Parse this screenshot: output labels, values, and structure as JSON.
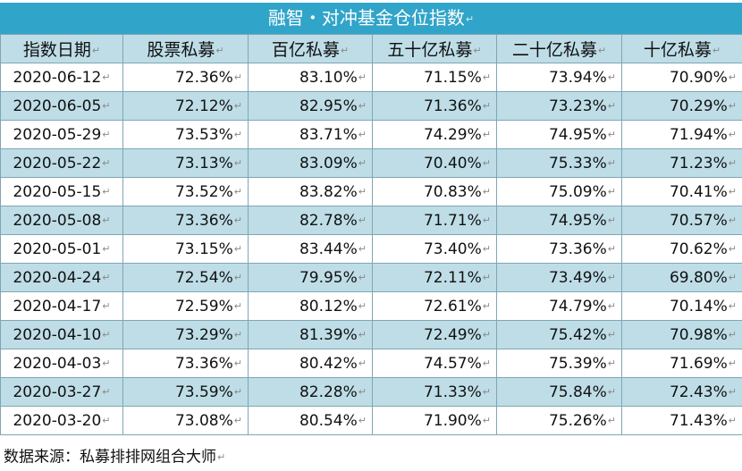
{
  "title": "融智・对冲基金仓位指数",
  "headers": [
    "指数日期",
    "股票私募",
    "百亿私募",
    "五十亿私募",
    "二十亿私募",
    "十亿私募"
  ],
  "rows": [
    [
      "2020-06-12",
      "72.36%",
      "83.10%",
      "71.15%",
      "73.94%",
      "70.90%"
    ],
    [
      "2020-06-05",
      "72.12%",
      "82.95%",
      "71.36%",
      "73.23%",
      "70.29%"
    ],
    [
      "2020-05-29",
      "73.53%",
      "83.71%",
      "74.29%",
      "74.95%",
      "71.94%"
    ],
    [
      "2020-05-22",
      "73.13%",
      "83.09%",
      "70.40%",
      "75.33%",
      "71.23%"
    ],
    [
      "2020-05-15",
      "73.52%",
      "83.82%",
      "70.83%",
      "75.09%",
      "70.41%"
    ],
    [
      "2020-05-08",
      "73.36%",
      "82.78%",
      "71.71%",
      "74.95%",
      "70.57%"
    ],
    [
      "2020-05-01",
      "73.15%",
      "83.44%",
      "73.40%",
      "73.36%",
      "70.62%"
    ],
    [
      "2020-04-24",
      "72.54%",
      "79.95%",
      "72.11%",
      "73.49%",
      "69.80%"
    ],
    [
      "2020-04-17",
      "72.59%",
      "80.12%",
      "72.61%",
      "74.79%",
      "70.14%"
    ],
    [
      "2020-04-10",
      "73.29%",
      "81.39%",
      "72.49%",
      "75.42%",
      "70.98%"
    ],
    [
      "2020-04-03",
      "73.36%",
      "80.42%",
      "74.57%",
      "75.39%",
      "71.69%"
    ],
    [
      "2020-03-27",
      "73.59%",
      "82.28%",
      "71.33%",
      "75.84%",
      "72.43%"
    ],
    [
      "2020-03-20",
      "73.08%",
      "80.54%",
      "71.90%",
      "75.26%",
      "71.43%"
    ]
  ],
  "source": "数据来源：私募排排网组合大师",
  "colors": {
    "title_bg": "#31a4c9",
    "band": "#bedde7",
    "border": "#7fa6b3"
  }
}
